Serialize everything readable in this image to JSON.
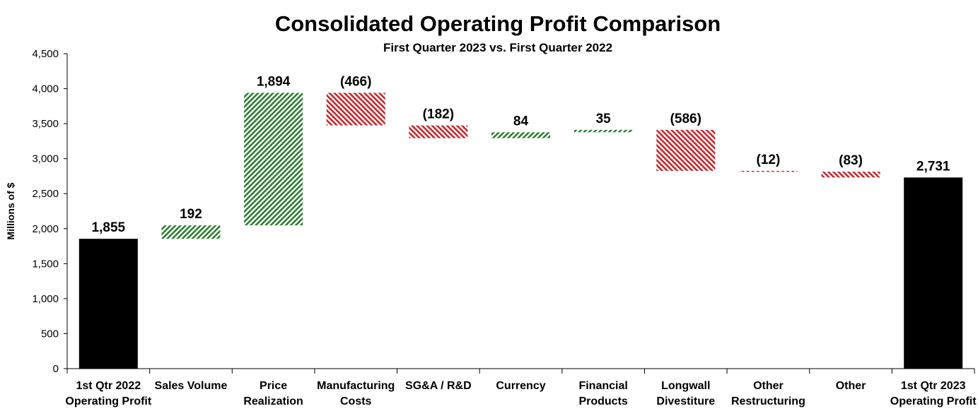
{
  "chart_data": {
    "type": "waterfall",
    "title": "Consolidated Operating Profit Comparison",
    "subtitle": "First Quarter 2023 vs. First Quarter 2022",
    "ylabel": "Millions of $",
    "xlabel": "",
    "ylim": [
      0,
      4500
    ],
    "yticks": [
      0,
      500,
      1000,
      1500,
      2000,
      2500,
      3000,
      3500,
      4000,
      4500
    ],
    "ytick_labels": [
      "0",
      "500",
      "1,000",
      "1,500",
      "2,000",
      "2,500",
      "3,000",
      "3,500",
      "4,000",
      "4,500"
    ],
    "grid": false,
    "legend": "none",
    "colors": {
      "total": "#000000",
      "increase": "#2e7d32",
      "decrease": "#c0282d"
    },
    "categories": [
      [
        "1st Qtr 2022",
        "Operating Profit"
      ],
      [
        "Sales Volume"
      ],
      [
        "Price",
        "Realization"
      ],
      [
        "Manufacturing",
        "Costs"
      ],
      [
        "SG&A / R&D"
      ],
      [
        "Currency"
      ],
      [
        "Financial",
        "Products"
      ],
      [
        "Longwall",
        "Divestiture"
      ],
      [
        "Other",
        "Restructuring"
      ],
      [
        "Other"
      ],
      [
        "1st Qtr 2023",
        "Operating Profit"
      ]
    ],
    "values": [
      1855,
      192,
      1894,
      -466,
      -182,
      84,
      35,
      -586,
      -12,
      -83,
      2731
    ],
    "kinds": [
      "total",
      "delta",
      "delta",
      "delta",
      "delta",
      "delta",
      "delta",
      "delta",
      "delta",
      "delta",
      "total"
    ],
    "data_labels": [
      "1,855",
      "192",
      "1,894",
      "(466)",
      "(182)",
      "84",
      "35",
      "(586)",
      "(12)",
      "(83)",
      "2,731"
    ]
  }
}
